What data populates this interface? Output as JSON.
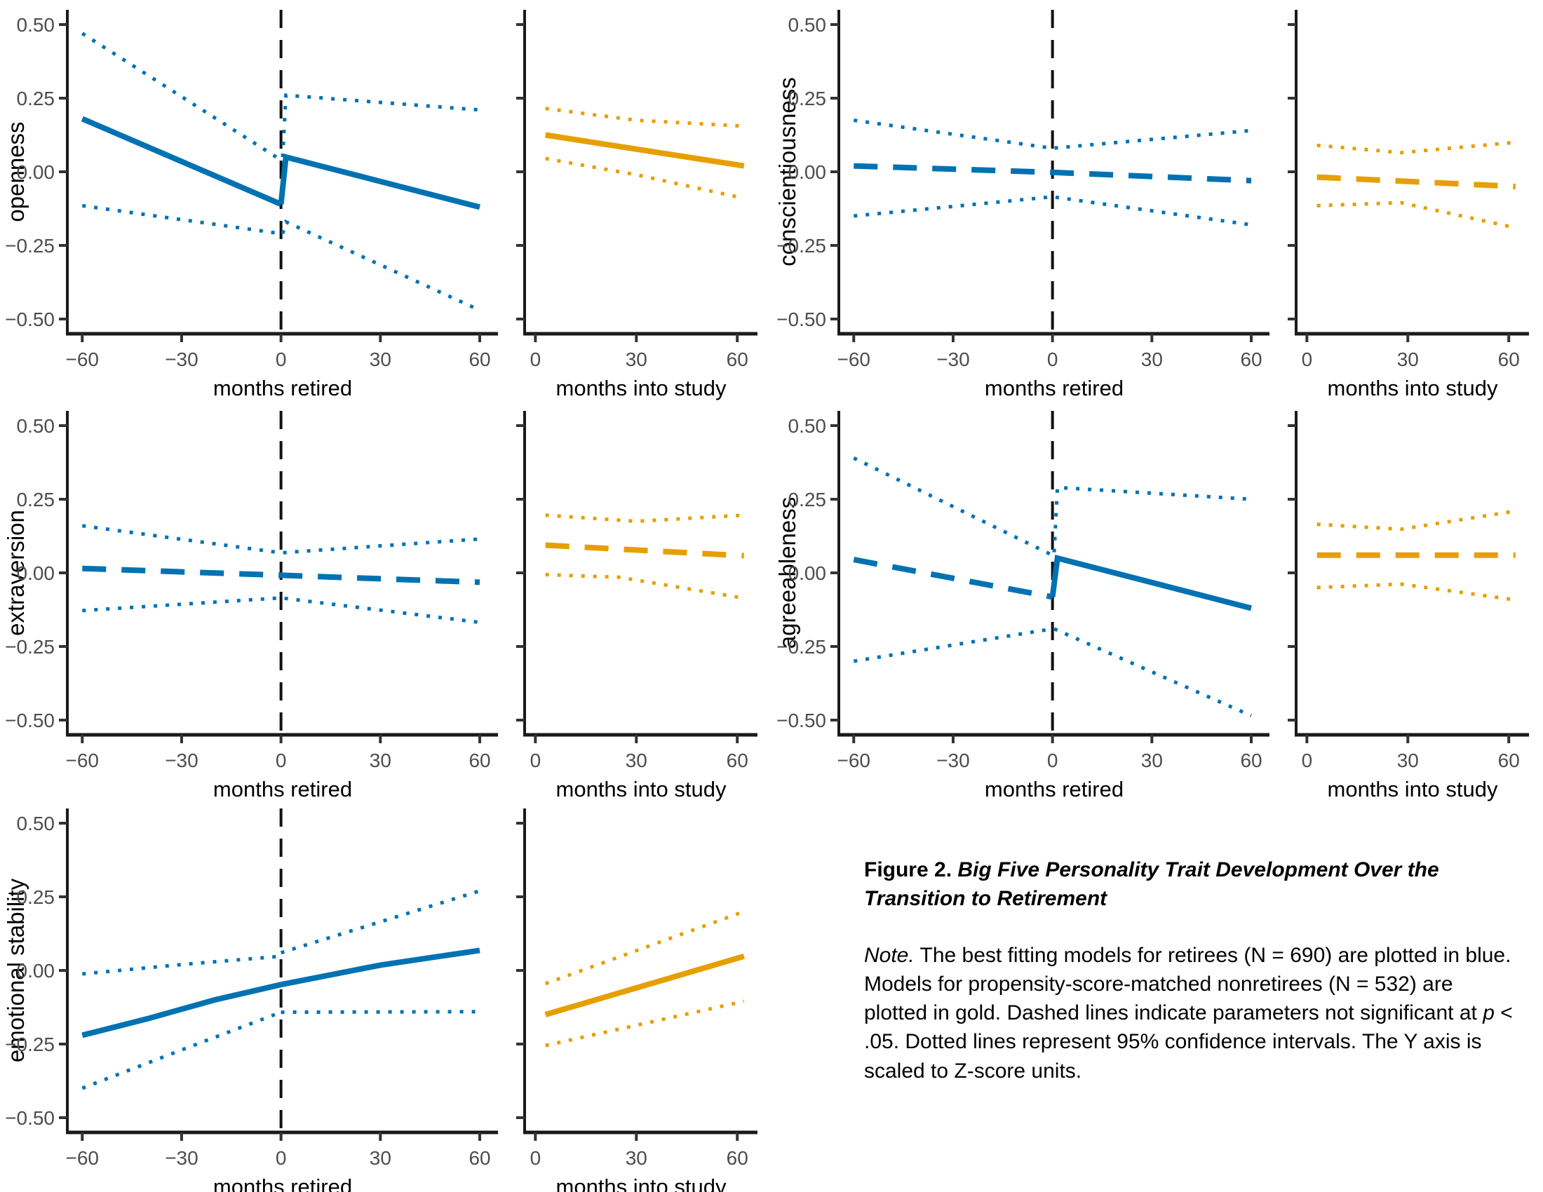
{
  "figure_background": "#ffffff",
  "colors": {
    "retirees_blue": "#0072B2",
    "nonretirees_gold": "#E69F00",
    "axis_line": "#1a1a1a",
    "tick_mark": "#333333",
    "tick_label": "#4d4d4d",
    "ref_line": "#111111",
    "text": "#000000"
  },
  "axes": {
    "y_tick_labels": [
      "0.50",
      "0.25",
      "0.00",
      "−0.25",
      "−0.50"
    ],
    "big_x_tick_labels": [
      "−60",
      "−30",
      "0",
      "30",
      "60"
    ],
    "small_x_tick_labels": [
      "0",
      "30",
      "60"
    ],
    "big_x_title": "months retired",
    "small_x_title": "months into study"
  },
  "caption": {
    "label": "Figure 2.",
    "title": " Big Five Personality Trait Development Over the Transition to Retirement",
    "note_parts": [
      {
        "text": "Note.",
        "italic": true
      },
      {
        "text": " The best fitting models for retirees (N = 690) are plotted in blue. Models for propensity-score-matched nonretirees (N = 532) are plotted in gold. Dashed lines indicate parameters not significant at ",
        "italic": false
      },
      {
        "text": "p",
        "italic": true
      },
      {
        "text": " < .05. Dotted lines represent 95% confidence intervals. The Y axis is scaled to Z-score units.",
        "italic": false
      }
    ]
  },
  "chart_data": {
    "type": "line",
    "y_units": "Z-score units",
    "ylim": [
      -0.55,
      0.55
    ],
    "y_ticks": [
      0.5,
      0.25,
      0,
      -0.25,
      -0.5
    ],
    "legend": {
      "solid": "significant estimate",
      "dashed": "parameter not significant at p < .05",
      "dotted": "95% confidence interval",
      "blue": "retirees (N = 690)",
      "gold": "nonretirees (N = 532)"
    },
    "panels": [
      {
        "trait": "openness",
        "subplots": [
          {
            "id": "retired",
            "group": "retirees",
            "x_ticks": [
              -60,
              -30,
              0,
              30,
              60
            ],
            "ref_line_x": 0,
            "series": [
              {
                "name": "estimate_pre",
                "style": "solid",
                "points": [
                  [
                    -60,
                    0.18
                  ],
                  [
                    0,
                    -0.11
                  ]
                ]
              },
              {
                "name": "estimate_post",
                "style": "solid",
                "points": [
                  [
                    0,
                    -0.11
                  ],
                  [
                    1.5,
                    0.05
                  ],
                  [
                    60,
                    -0.12
                  ]
                ]
              },
              {
                "name": "ci_upper_pre",
                "style": "dotted",
                "points": [
                  [
                    -60,
                    0.47
                  ],
                  [
                    0,
                    0.04
                  ]
                ]
              },
              {
                "name": "ci_upper_post",
                "style": "dotted",
                "points": [
                  [
                    0.5,
                    0.05
                  ],
                  [
                    1.5,
                    0.26
                  ],
                  [
                    60,
                    0.21
                  ]
                ]
              },
              {
                "name": "ci_lower_pre",
                "style": "dotted",
                "points": [
                  [
                    -60,
                    -0.115
                  ],
                  [
                    0,
                    -0.21
                  ]
                ]
              },
              {
                "name": "ci_lower_post",
                "style": "dotted",
                "points": [
                  [
                    0.5,
                    -0.21
                  ],
                  [
                    1.5,
                    -0.17
                  ],
                  [
                    60,
                    -0.47
                  ]
                ]
              }
            ]
          },
          {
            "id": "study",
            "group": "nonretirees",
            "x_ticks": [
              0,
              30,
              60
            ],
            "series": [
              {
                "name": "estimate",
                "style": "solid",
                "points": [
                  [
                    3,
                    0.125
                  ],
                  [
                    62,
                    0.02
                  ]
                ]
              },
              {
                "name": "ci_upper",
                "style": "dotted",
                "points": [
                  [
                    3,
                    0.215
                  ],
                  [
                    30,
                    0.175
                  ],
                  [
                    62,
                    0.155
                  ]
                ]
              },
              {
                "name": "ci_lower",
                "style": "dotted",
                "points": [
                  [
                    3,
                    0.045
                  ],
                  [
                    30,
                    -0.01
                  ],
                  [
                    62,
                    -0.09
                  ]
                ]
              }
            ]
          }
        ]
      },
      {
        "trait": "conscientiousness",
        "subplots": [
          {
            "id": "retired",
            "group": "retirees",
            "x_ticks": [
              -60,
              -30,
              0,
              30,
              60
            ],
            "ref_line_x": 0,
            "series": [
              {
                "name": "estimate",
                "style": "dashed",
                "points": [
                  [
                    -60,
                    0.02
                  ],
                  [
                    0,
                    -0.002
                  ],
                  [
                    60,
                    -0.03
                  ]
                ]
              },
              {
                "name": "ci_upper",
                "style": "dotted",
                "points": [
                  [
                    -60,
                    0.175
                  ],
                  [
                    0,
                    0.08
                  ],
                  [
                    60,
                    0.14
                  ]
                ]
              },
              {
                "name": "ci_lower",
                "style": "dotted",
                "points": [
                  [
                    -60,
                    -0.15
                  ],
                  [
                    0,
                    -0.085
                  ],
                  [
                    60,
                    -0.18
                  ]
                ]
              }
            ]
          },
          {
            "id": "study",
            "group": "nonretirees",
            "x_ticks": [
              0,
              30,
              60
            ],
            "series": [
              {
                "name": "estimate",
                "style": "dashed",
                "points": [
                  [
                    3,
                    -0.018
                  ],
                  [
                    62,
                    -0.05
                  ]
                ]
              },
              {
                "name": "ci_upper",
                "style": "dotted",
                "points": [
                  [
                    3,
                    0.09
                  ],
                  [
                    28,
                    0.065
                  ],
                  [
                    62,
                    0.1
                  ]
                ]
              },
              {
                "name": "ci_lower",
                "style": "dotted",
                "points": [
                  [
                    3,
                    -0.115
                  ],
                  [
                    28,
                    -0.105
                  ],
                  [
                    62,
                    -0.19
                  ]
                ]
              }
            ]
          }
        ]
      },
      {
        "trait": "extraversion",
        "subplots": [
          {
            "id": "retired",
            "group": "retirees",
            "x_ticks": [
              -60,
              -30,
              0,
              30,
              60
            ],
            "ref_line_x": 0,
            "series": [
              {
                "name": "estimate",
                "style": "dashed",
                "points": [
                  [
                    -60,
                    0.015
                  ],
                  [
                    0,
                    -0.008
                  ],
                  [
                    60,
                    -0.032
                  ]
                ]
              },
              {
                "name": "ci_upper",
                "style": "dotted",
                "points": [
                  [
                    -60,
                    0.16
                  ],
                  [
                    0,
                    0.068
                  ],
                  [
                    60,
                    0.115
                  ]
                ]
              },
              {
                "name": "ci_lower",
                "style": "dotted",
                "points": [
                  [
                    -60,
                    -0.128
                  ],
                  [
                    0,
                    -0.085
                  ],
                  [
                    60,
                    -0.168
                  ]
                ]
              }
            ]
          },
          {
            "id": "study",
            "group": "nonretirees",
            "x_ticks": [
              0,
              30,
              60
            ],
            "series": [
              {
                "name": "estimate",
                "style": "dashed",
                "points": [
                  [
                    3,
                    0.094
                  ],
                  [
                    62,
                    0.058
                  ]
                ]
              },
              {
                "name": "ci_upper",
                "style": "dotted",
                "points": [
                  [
                    3,
                    0.196
                  ],
                  [
                    30,
                    0.175
                  ],
                  [
                    62,
                    0.196
                  ]
                ]
              },
              {
                "name": "ci_lower",
                "style": "dotted",
                "points": [
                  [
                    3,
                    -0.006
                  ],
                  [
                    25,
                    -0.015
                  ],
                  [
                    62,
                    -0.086
                  ]
                ]
              }
            ]
          }
        ]
      },
      {
        "trait": "agreeableness",
        "subplots": [
          {
            "id": "retired",
            "group": "retirees",
            "x_ticks": [
              -60,
              -30,
              0,
              30,
              60
            ],
            "ref_line_x": 0,
            "series": [
              {
                "name": "estimate_pre",
                "style": "dashed",
                "points": [
                  [
                    -60,
                    0.045
                  ],
                  [
                    0,
                    -0.082
                  ]
                ]
              },
              {
                "name": "estimate_post",
                "style": "solid",
                "points": [
                  [
                    0,
                    -0.082
                  ],
                  [
                    1.5,
                    0.05
                  ],
                  [
                    60,
                    -0.12
                  ]
                ]
              },
              {
                "name": "ci_upper_pre",
                "style": "dotted",
                "points": [
                  [
                    -60,
                    0.39
                  ],
                  [
                    0,
                    0.06
                  ]
                ]
              },
              {
                "name": "ci_upper_post",
                "style": "dotted",
                "points": [
                  [
                    0.5,
                    0.07
                  ],
                  [
                    1.5,
                    0.29
                  ],
                  [
                    60,
                    0.25
                  ]
                ]
              },
              {
                "name": "ci_lower_pre",
                "style": "dotted",
                "points": [
                  [
                    -60,
                    -0.3
                  ],
                  [
                    0,
                    -0.19
                  ]
                ]
              },
              {
                "name": "ci_lower_post",
                "style": "dotted",
                "points": [
                  [
                    0.5,
                    -0.19
                  ],
                  [
                    60,
                    -0.485
                  ]
                ]
              }
            ]
          },
          {
            "id": "study",
            "group": "nonretirees",
            "x_ticks": [
              0,
              30,
              60
            ],
            "series": [
              {
                "name": "estimate",
                "style": "dashed",
                "points": [
                  [
                    3,
                    0.06
                  ],
                  [
                    62,
                    0.06
                  ]
                ]
              },
              {
                "name": "ci_upper",
                "style": "dotted",
                "points": [
                  [
                    3,
                    0.165
                  ],
                  [
                    28,
                    0.148
                  ],
                  [
                    62,
                    0.21
                  ]
                ]
              },
              {
                "name": "ci_lower",
                "style": "dotted",
                "points": [
                  [
                    3,
                    -0.05
                  ],
                  [
                    28,
                    -0.038
                  ],
                  [
                    62,
                    -0.092
                  ]
                ]
              }
            ]
          }
        ]
      },
      {
        "trait": "emotional stability",
        "subplots": [
          {
            "id": "retired",
            "group": "retirees",
            "x_ticks": [
              -60,
              -30,
              0,
              30,
              60
            ],
            "ref_line_x": 0,
            "series": [
              {
                "name": "estimate_pre",
                "style": "solid",
                "points": [
                  [
                    -60,
                    -0.22
                  ],
                  [
                    -40,
                    -0.163
                  ],
                  [
                    -20,
                    -0.1
                  ],
                  [
                    0,
                    -0.048
                  ]
                ]
              },
              {
                "name": "estimate_post",
                "style": "solid",
                "points": [
                  [
                    0,
                    -0.048
                  ],
                  [
                    30,
                    0.018
                  ],
                  [
                    60,
                    0.068
                  ]
                ]
              },
              {
                "name": "ci_upper_pre",
                "style": "dotted",
                "points": [
                  [
                    -60,
                    -0.012
                  ],
                  [
                    -30,
                    0.02
                  ],
                  [
                    0,
                    0.048
                  ]
                ]
              },
              {
                "name": "ci_upper_post",
                "style": "dotted",
                "points": [
                  [
                    0,
                    0.06
                  ],
                  [
                    60,
                    0.27
                  ]
                ]
              },
              {
                "name": "ci_lower_pre",
                "style": "dotted",
                "points": [
                  [
                    -60,
                    -0.4
                  ],
                  [
                    -30,
                    -0.27
                  ],
                  [
                    0,
                    -0.142
                  ]
                ]
              },
              {
                "name": "ci_lower_post",
                "style": "dotted",
                "points": [
                  [
                    0,
                    -0.142
                  ],
                  [
                    60,
                    -0.14
                  ]
                ]
              }
            ]
          },
          {
            "id": "study",
            "group": "nonretirees",
            "x_ticks": [
              0,
              30,
              60
            ],
            "series": [
              {
                "name": "estimate",
                "style": "solid",
                "points": [
                  [
                    3,
                    -0.15
                  ],
                  [
                    62,
                    0.048
                  ]
                ]
              },
              {
                "name": "ci_upper",
                "style": "dotted",
                "points": [
                  [
                    3,
                    -0.045
                  ],
                  [
                    62,
                    0.2
                  ]
                ]
              },
              {
                "name": "ci_lower",
                "style": "dotted",
                "points": [
                  [
                    3,
                    -0.255
                  ],
                  [
                    62,
                    -0.105
                  ]
                ]
              }
            ]
          }
        ]
      }
    ]
  }
}
